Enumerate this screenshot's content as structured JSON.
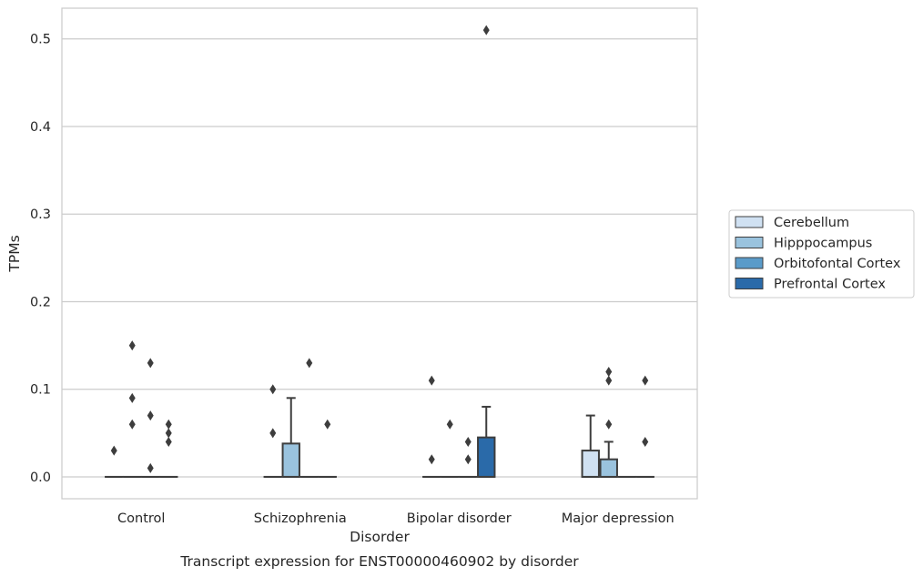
{
  "caption": "Transcript expression for ENST00000460902 by disorder",
  "chart_data": {
    "type": "box",
    "xlabel": "Disorder",
    "ylabel": "TPMs",
    "ylim": [
      -0.025,
      0.535
    ],
    "yticks": [
      0.0,
      0.1,
      0.2,
      0.3,
      0.4,
      0.5
    ],
    "ytick_labels": [
      "0.0",
      "0.1",
      "0.2",
      "0.3",
      "0.4",
      "0.5"
    ],
    "grid": true,
    "legend_position": "right",
    "categories": [
      "Control",
      "Schizophrenia",
      "Bipolar disorder",
      "Major depression"
    ],
    "series": [
      {
        "name": "Cerebellum",
        "color": "#d0e1f2",
        "boxes": [
          {
            "q1": 0.0,
            "median": 0.0,
            "q3": 0.0,
            "whisker_low": 0.0,
            "whisker_high": 0.0,
            "outliers": [
              0.03
            ]
          },
          {
            "q1": 0.0,
            "median": 0.0,
            "q3": 0.0,
            "whisker_low": 0.0,
            "whisker_high": 0.0,
            "outliers": [
              0.05,
              0.1
            ]
          },
          {
            "q1": 0.0,
            "median": 0.0,
            "q3": 0.0,
            "whisker_low": 0.0,
            "whisker_high": 0.0,
            "outliers": [
              0.02,
              0.11
            ]
          },
          {
            "q1": 0.0,
            "median": 0.0,
            "q3": 0.03,
            "whisker_low": 0.0,
            "whisker_high": 0.07,
            "outliers": []
          }
        ]
      },
      {
        "name": "Hipppocampus",
        "color": "#9ac3de",
        "boxes": [
          {
            "q1": 0.0,
            "median": 0.0,
            "q3": 0.0,
            "whisker_low": 0.0,
            "whisker_high": 0.0,
            "outliers": [
              0.06,
              0.09,
              0.15
            ]
          },
          {
            "q1": 0.0,
            "median": 0.0,
            "q3": 0.038,
            "whisker_low": 0.0,
            "whisker_high": 0.09,
            "outliers": []
          },
          {
            "q1": 0.0,
            "median": 0.0,
            "q3": 0.0,
            "whisker_low": 0.0,
            "whisker_high": 0.0,
            "outliers": [
              0.06
            ]
          },
          {
            "q1": 0.0,
            "median": 0.0,
            "q3": 0.02,
            "whisker_low": 0.0,
            "whisker_high": 0.04,
            "outliers": [
              0.06,
              0.11,
              0.12
            ]
          }
        ]
      },
      {
        "name": "Orbitofontal Cortex",
        "color": "#5a9bc9",
        "boxes": [
          {
            "q1": 0.0,
            "median": 0.0,
            "q3": 0.0,
            "whisker_low": 0.0,
            "whisker_high": 0.0,
            "outliers": [
              0.01,
              0.07,
              0.13
            ]
          },
          {
            "q1": 0.0,
            "median": 0.0,
            "q3": 0.0,
            "whisker_low": 0.0,
            "whisker_high": 0.0,
            "outliers": [
              0.13
            ]
          },
          {
            "q1": 0.0,
            "median": 0.0,
            "q3": 0.0,
            "whisker_low": 0.0,
            "whisker_high": 0.0,
            "outliers": [
              0.02,
              0.04
            ]
          },
          {
            "q1": 0.0,
            "median": 0.0,
            "q3": 0.0,
            "whisker_low": 0.0,
            "whisker_high": 0.0,
            "outliers": []
          }
        ]
      },
      {
        "name": "Prefrontal Cortex",
        "color": "#2a6aa9",
        "boxes": [
          {
            "q1": 0.0,
            "median": 0.0,
            "q3": 0.0,
            "whisker_low": 0.0,
            "whisker_high": 0.0,
            "outliers": [
              0.04,
              0.05,
              0.06
            ]
          },
          {
            "q1": 0.0,
            "median": 0.0,
            "q3": 0.0,
            "whisker_low": 0.0,
            "whisker_high": 0.0,
            "outliers": [
              0.06
            ]
          },
          {
            "q1": 0.0,
            "median": 0.0,
            "q3": 0.045,
            "whisker_low": 0.0,
            "whisker_high": 0.08,
            "outliers": [
              0.51
            ]
          },
          {
            "q1": 0.0,
            "median": 0.0,
            "q3": 0.0,
            "whisker_low": 0.0,
            "whisker_high": 0.0,
            "outliers": [
              0.04,
              0.11
            ]
          }
        ]
      }
    ]
  }
}
